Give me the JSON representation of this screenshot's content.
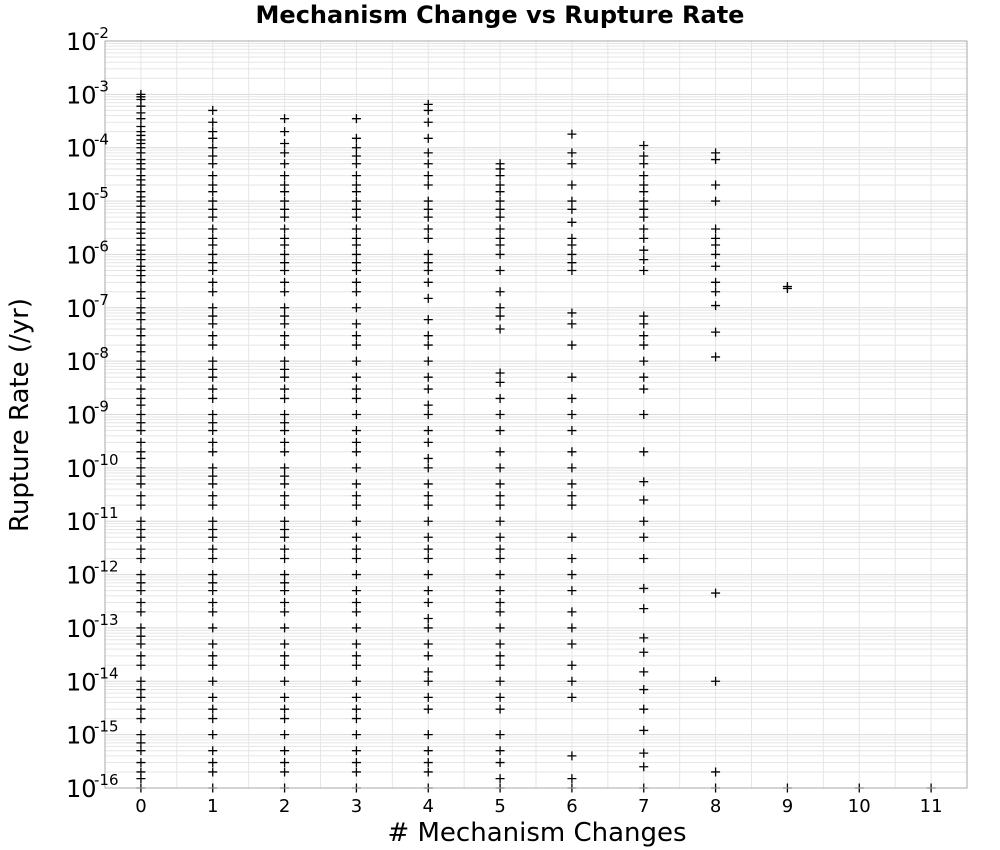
{
  "chart_data": {
    "type": "scatter",
    "title": "Mechanism Change vs Rupture Rate",
    "xlabel": "# Mechanism Changes",
    "ylabel": "Rupture Rate (/yr)",
    "x_ticks": [
      0,
      1,
      2,
      3,
      4,
      5,
      6,
      7,
      8,
      9,
      10,
      11
    ],
    "xlim": [
      -0.5,
      11.5
    ],
    "y_scale": "log",
    "ylim": [
      1e-16,
      0.01
    ],
    "y_ticks": [
      {
        "base": "10",
        "exp": "-2",
        "value": 0.01
      },
      {
        "base": "10",
        "exp": "-3",
        "value": 0.001
      },
      {
        "base": "10",
        "exp": "-4",
        "value": 0.0001
      },
      {
        "base": "10",
        "exp": "-5",
        "value": 1e-05
      },
      {
        "base": "10",
        "exp": "-6",
        "value": 1e-06
      },
      {
        "base": "10",
        "exp": "-7",
        "value": 1e-07
      },
      {
        "base": "10",
        "exp": "-8",
        "value": 1e-08
      },
      {
        "base": "10",
        "exp": "-9",
        "value": 1e-09
      },
      {
        "base": "10",
        "exp": "-10",
        "value": 1e-10
      },
      {
        "base": "10",
        "exp": "-11",
        "value": 1e-11
      },
      {
        "base": "10",
        "exp": "-12",
        "value": 1e-12
      },
      {
        "base": "10",
        "exp": "-13",
        "value": 1e-13
      },
      {
        "base": "10",
        "exp": "-14",
        "value": 1e-14
      },
      {
        "base": "10",
        "exp": "-15",
        "value": 1e-15
      },
      {
        "base": "10",
        "exp": "-16",
        "value": 1e-16
      }
    ],
    "grid": true,
    "marker": "plus",
    "marker_color": "#000000",
    "series": [
      {
        "x": 0,
        "y": [
          0.001,
          0.0009,
          0.0008,
          0.0006,
          0.00045,
          0.00035,
          0.00025,
          0.0002,
          0.00017,
          0.00014,
          0.00012,
          0.0001,
          8e-05,
          6e-05,
          5e-05,
          4e-05,
          3e-05,
          2.5e-05,
          2e-05,
          1.5e-05,
          1.2e-05,
          1e-05,
          8e-06,
          6e-06,
          5e-06,
          4e-06,
          3e-06,
          2.5e-06,
          2e-06,
          1.5e-06,
          1.2e-06,
          1e-06,
          8e-07,
          6e-07,
          5e-07,
          4e-07,
          3e-07,
          2e-07,
          1.5e-07,
          1e-07,
          8e-08,
          6e-08,
          4e-08,
          3e-08,
          2e-08,
          1.5e-08,
          1e-08,
          7e-09,
          5e-09,
          3e-09,
          2e-09,
          1.5e-09,
          1e-09,
          7e-10,
          5e-10,
          3e-10,
          2e-10,
          1.5e-10,
          1e-10,
          7e-11,
          5e-11,
          3e-11,
          2e-11,
          1e-11,
          7e-12,
          5e-12,
          3e-12,
          2e-12,
          1e-12,
          7e-13,
          5e-13,
          3e-13,
          2e-13,
          1e-13,
          7e-14,
          5e-14,
          3e-14,
          2e-14,
          1e-14,
          7e-15,
          5e-15,
          3e-15,
          2e-15,
          1e-15,
          7e-16,
          5e-16,
          3e-16,
          2e-16,
          1.5e-16,
          1e-16
        ]
      },
      {
        "x": 1,
        "y": [
          0.0005,
          0.0003,
          0.0002,
          0.00015,
          0.0001,
          7e-05,
          5e-05,
          3e-05,
          2e-05,
          1.5e-05,
          1e-05,
          7e-06,
          5e-06,
          3e-06,
          2e-06,
          1.5e-06,
          1e-06,
          7e-07,
          5e-07,
          3e-07,
          2e-07,
          1e-07,
          7e-08,
          5e-08,
          3e-08,
          2e-08,
          1e-08,
          7e-09,
          5e-09,
          3e-09,
          2e-09,
          1e-09,
          7e-10,
          5e-10,
          3e-10,
          2e-10,
          1e-10,
          7e-11,
          5e-11,
          3e-11,
          2e-11,
          1e-11,
          7e-12,
          5e-12,
          3e-12,
          2e-12,
          1e-12,
          7e-13,
          5e-13,
          3e-13,
          2e-13,
          1e-13,
          5e-14,
          3e-14,
          2e-14,
          1e-14,
          5e-15,
          3e-15,
          2e-15,
          1e-15,
          5e-16,
          3e-16,
          2e-16,
          1e-16
        ]
      },
      {
        "x": 2,
        "y": [
          0.00035,
          0.0002,
          0.00012,
          8e-05,
          5e-05,
          3e-05,
          2e-05,
          1.5e-05,
          1e-05,
          7e-06,
          5e-06,
          3e-06,
          2e-06,
          1.5e-06,
          1e-06,
          7e-07,
          5e-07,
          3e-07,
          2e-07,
          1e-07,
          7e-08,
          5e-08,
          3e-08,
          2e-08,
          1e-08,
          7e-09,
          5e-09,
          3e-09,
          2e-09,
          1e-09,
          7e-10,
          5e-10,
          3e-10,
          2e-10,
          1e-10,
          7e-11,
          5e-11,
          3e-11,
          2e-11,
          1e-11,
          7e-12,
          5e-12,
          3e-12,
          2e-12,
          1e-12,
          7e-13,
          5e-13,
          3e-13,
          2e-13,
          1e-13,
          5e-14,
          3e-14,
          2e-14,
          1e-14,
          5e-15,
          3e-15,
          2e-15,
          1e-15,
          5e-16,
          3e-16,
          2e-16,
          1e-16
        ]
      },
      {
        "x": 3,
        "y": [
          0.00035,
          0.00015,
          0.0001,
          7e-05,
          5e-05,
          3e-05,
          2e-05,
          1.5e-05,
          1e-05,
          7e-06,
          5e-06,
          3e-06,
          2e-06,
          1.5e-06,
          1e-06,
          7e-07,
          5e-07,
          3e-07,
          2e-07,
          1e-07,
          5e-08,
          3e-08,
          2e-08,
          1e-08,
          5e-09,
          3e-09,
          2e-09,
          1e-09,
          5e-10,
          3e-10,
          2e-10,
          1e-10,
          5e-11,
          3e-11,
          2e-11,
          1e-11,
          5e-12,
          3e-12,
          2e-12,
          1e-12,
          5e-13,
          3e-13,
          2e-13,
          1e-13,
          5e-14,
          3e-14,
          2e-14,
          1e-14,
          5e-15,
          3e-15,
          2e-15,
          1e-15,
          5e-16,
          3e-16,
          2e-16,
          1e-16
        ]
      },
      {
        "x": 4,
        "y": [
          0.00065,
          0.0005,
          0.0003,
          0.00015,
          8e-05,
          5e-05,
          3e-05,
          2e-05,
          1e-05,
          7e-06,
          5e-06,
          3e-06,
          2e-06,
          1e-06,
          7e-07,
          5e-07,
          3e-07,
          1.5e-07,
          6e-08,
          3e-08,
          2e-08,
          1e-08,
          5e-09,
          3e-09,
          1.5e-09,
          1e-09,
          5e-10,
          3e-10,
          1.5e-10,
          1e-10,
          5e-11,
          3e-11,
          2e-11,
          1e-11,
          5e-12,
          3e-12,
          2e-12,
          1e-12,
          5e-13,
          3e-13,
          1.5e-13,
          1e-13,
          5e-14,
          3e-14,
          1.5e-14,
          1e-14,
          5e-15,
          3e-15,
          1e-15,
          5e-16,
          3e-16,
          2e-16,
          1e-16
        ]
      },
      {
        "x": 5,
        "y": [
          5e-05,
          4e-05,
          3e-05,
          2e-05,
          1.5e-05,
          1e-05,
          7e-06,
          5e-06,
          3e-06,
          2e-06,
          1.5e-06,
          1e-06,
          5e-07,
          2e-07,
          1e-07,
          7e-08,
          4e-08,
          6e-09,
          4e-09,
          2e-09,
          1e-09,
          5e-10,
          2e-10,
          1e-10,
          5e-11,
          3e-11,
          2e-11,
          1e-11,
          5e-12,
          3e-12,
          2e-12,
          1e-12,
          5e-13,
          3e-13,
          2e-13,
          1e-13,
          5e-14,
          3e-14,
          2e-14,
          1e-14,
          5e-15,
          3e-15,
          1e-15,
          5e-16,
          3e-16,
          1.5e-16,
          1e-16
        ]
      },
      {
        "x": 6,
        "y": [
          0.00018,
          8e-05,
          5e-05,
          2e-05,
          1e-05,
          7e-06,
          4e-06,
          2e-06,
          1.5e-06,
          1e-06,
          7e-07,
          5e-07,
          8e-08,
          5e-08,
          2e-08,
          5e-09,
          2e-09,
          1e-09,
          5e-10,
          2e-10,
          1e-10,
          5e-11,
          3e-11,
          2e-11,
          5e-12,
          2e-12,
          1e-12,
          5e-13,
          2e-13,
          1e-13,
          5e-14,
          2e-14,
          1e-14,
          5e-15,
          4e-16,
          1.5e-16,
          1e-16
        ]
      },
      {
        "x": 7,
        "y": [
          0.00011,
          7e-05,
          5e-05,
          3e-05,
          2e-05,
          1.5e-05,
          1e-05,
          7e-06,
          5e-06,
          3e-06,
          2e-06,
          1.2e-06,
          8e-07,
          5e-07,
          7e-08,
          5e-08,
          3e-08,
          2e-08,
          1e-08,
          5e-09,
          3e-09,
          1e-09,
          2e-10,
          5.5e-11,
          2.5e-11,
          1e-11,
          5e-12,
          2e-12,
          5.5e-13,
          2.3e-13,
          6.5e-14,
          3.5e-14,
          1.5e-14,
          7e-15,
          3e-15,
          1.2e-15,
          4.5e-16,
          2.5e-16,
          1e-16
        ]
      },
      {
        "x": 8,
        "y": [
          8e-05,
          6e-05,
          2e-05,
          1e-05,
          3e-06,
          2e-06,
          1.5e-06,
          1e-06,
          6e-07,
          3e-07,
          2e-07,
          1.1e-07,
          3.5e-08,
          1.2e-08,
          4.5e-13,
          1e-14,
          2e-16,
          1e-16
        ]
      },
      {
        "x": 9,
        "y": [
          2.5e-07,
          2.3e-07,
          1e-16
        ]
      },
      {
        "x": 10,
        "y": [
          1e-16
        ]
      },
      {
        "x": 11,
        "y": [
          1e-16
        ]
      }
    ]
  }
}
